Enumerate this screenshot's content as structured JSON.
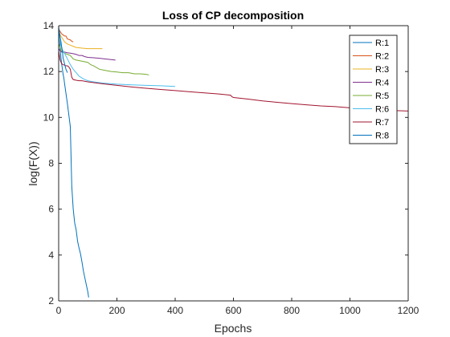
{
  "chart_data": {
    "type": "line",
    "title": "Loss of CP decomposition",
    "xlabel": "Epochs",
    "ylabel": "log(F(X))",
    "xlim": [
      0,
      1200
    ],
    "ylim": [
      2,
      14
    ],
    "xticks": [
      0,
      200,
      400,
      600,
      800,
      1000,
      1200
    ],
    "yticks": [
      2,
      4,
      6,
      8,
      10,
      12,
      14
    ],
    "grid": false,
    "legend_position": "top-right",
    "series": [
      {
        "name": "R:1",
        "color": "#0072BD",
        "x": [
          0,
          3,
          5,
          8,
          10,
          13,
          15,
          18,
          20,
          25,
          30,
          35,
          40,
          45,
          50,
          55,
          60,
          65,
          70,
          75,
          80,
          85,
          90,
          95,
          100,
          103
        ],
        "y": [
          14.0,
          13.4,
          13.0,
          12.6,
          12.35,
          12.1,
          11.9,
          11.7,
          11.5,
          11.05,
          10.6,
          10.1,
          9.6,
          7.0,
          6.0,
          5.4,
          5.1,
          4.6,
          4.3,
          4.05,
          3.7,
          3.3,
          3.0,
          2.7,
          2.4,
          2.15
        ]
      },
      {
        "name": "R:2",
        "color": "#D95319",
        "x": [
          0,
          5,
          10,
          15,
          20,
          25,
          30,
          35,
          40,
          45,
          48,
          50
        ],
        "y": [
          13.85,
          13.75,
          13.65,
          13.6,
          13.55,
          13.55,
          13.42,
          13.4,
          13.38,
          13.32,
          13.3,
          13.3
        ]
      },
      {
        "name": "R:3",
        "color": "#EDB120",
        "x": [
          0,
          5,
          10,
          15,
          20,
          25,
          30,
          40,
          50,
          60,
          80,
          100,
          120,
          140,
          150
        ],
        "y": [
          13.8,
          13.6,
          13.5,
          13.4,
          13.3,
          13.25,
          13.2,
          13.15,
          13.1,
          13.05,
          13.02,
          13.0,
          13.0,
          13.0,
          13.0
        ]
      },
      {
        "name": "R:4",
        "color": "#7E2F8E",
        "x": [
          0,
          5,
          10,
          20,
          30,
          40,
          50,
          60,
          70,
          80,
          90,
          100,
          120,
          140,
          160,
          180,
          195
        ],
        "y": [
          13.0,
          12.9,
          12.85,
          12.85,
          12.82,
          12.8,
          12.78,
          12.75,
          12.7,
          12.7,
          12.65,
          12.62,
          12.6,
          12.58,
          12.55,
          12.52,
          12.5
        ]
      },
      {
        "name": "R:5",
        "color": "#77AC30",
        "x": [
          0,
          10,
          20,
          30,
          40,
          50,
          60,
          80,
          100,
          110,
          120,
          140,
          160,
          180,
          200,
          220,
          240,
          260,
          280,
          300,
          310
        ],
        "y": [
          13.2,
          12.9,
          12.8,
          12.75,
          12.7,
          12.55,
          12.5,
          12.45,
          12.4,
          12.3,
          12.25,
          12.1,
          12.05,
          12.0,
          11.98,
          11.95,
          11.95,
          11.9,
          11.9,
          11.88,
          11.85
        ]
      },
      {
        "name": "R:6",
        "color": "#4DBEEE",
        "x": [
          0,
          5,
          10,
          20,
          30,
          40,
          50,
          60,
          70,
          80,
          90,
          100,
          120,
          150,
          200,
          250,
          300,
          350,
          400
        ],
        "y": [
          13.6,
          13.3,
          13.0,
          12.8,
          12.55,
          12.3,
          12.1,
          11.95,
          11.8,
          11.72,
          11.65,
          11.6,
          11.55,
          11.5,
          11.45,
          11.42,
          11.4,
          11.38,
          11.35
        ]
      },
      {
        "name": "R:7",
        "color": "#A2142F",
        "x": [
          0,
          5,
          10,
          15,
          20,
          25,
          30,
          35,
          40,
          45,
          50,
          60,
          70,
          80,
          100,
          150,
          200,
          250,
          300,
          350,
          400,
          450,
          500,
          550,
          590,
          595,
          600,
          650,
          700,
          750,
          800,
          850,
          900,
          950,
          1000,
          1050,
          1100,
          1150,
          1200
        ],
        "y": [
          12.9,
          12.5,
          12.35,
          12.3,
          12.28,
          12.25,
          12.25,
          12.2,
          12.1,
          11.75,
          11.65,
          11.62,
          11.6,
          11.6,
          11.55,
          11.47,
          11.4,
          11.33,
          11.27,
          11.22,
          11.17,
          11.12,
          11.07,
          11.02,
          10.97,
          10.9,
          10.87,
          10.8,
          10.72,
          10.66,
          10.6,
          10.55,
          10.5,
          10.47,
          10.42,
          10.36,
          10.33,
          10.3,
          10.28
        ]
      },
      {
        "name": "R:8",
        "color": "#0072BD",
        "x": [
          0,
          3,
          5,
          8,
          10,
          13,
          15,
          20,
          25,
          30
        ],
        "y": [
          13.9,
          13.7,
          13.5,
          13.3,
          13.1,
          12.9,
          12.6,
          12.35,
          12.1,
          11.95
        ]
      }
    ]
  }
}
